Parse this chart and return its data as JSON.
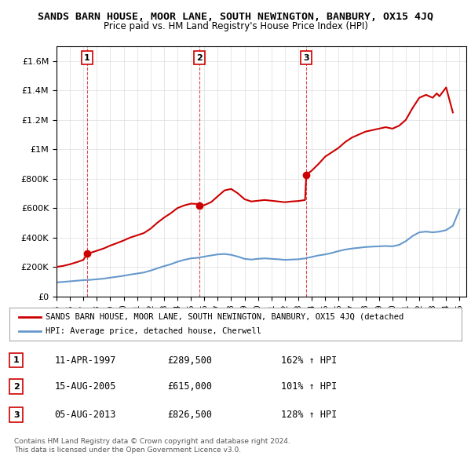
{
  "title": "SANDS BARN HOUSE, MOOR LANE, SOUTH NEWINGTON, BANBURY, OX15 4JQ",
  "subtitle": "Price paid vs. HM Land Registry's House Price Index (HPI)",
  "ylim": [
    0,
    1700000
  ],
  "yticks": [
    0,
    200000,
    400000,
    600000,
    800000,
    1000000,
    1200000,
    1400000,
    1600000
  ],
  "ytick_labels": [
    "£0",
    "£200K",
    "£400K",
    "£600K",
    "£800K",
    "£1M",
    "£1.2M",
    "£1.4M",
    "£1.6M"
  ],
  "sale_dates": [
    1997.28,
    2005.62,
    2013.59
  ],
  "sale_prices": [
    289500,
    615000,
    826500
  ],
  "sale_labels": [
    "1",
    "2",
    "3"
  ],
  "sale_label_info": [
    {
      "num": "1",
      "date": "11-APR-1997",
      "price": "£289,500",
      "hpi": "162% ↑ HPI"
    },
    {
      "num": "2",
      "date": "15-AUG-2005",
      "price": "£615,000",
      "hpi": "101% ↑ HPI"
    },
    {
      "num": "3",
      "date": "05-AUG-2013",
      "price": "£826,500",
      "hpi": "128% ↑ HPI"
    }
  ],
  "red_line_color": "#cc0000",
  "blue_line_color": "#6699cc",
  "dashed_vline_color": "#cc0000",
  "legend_label_red": "SANDS BARN HOUSE, MOOR LANE, SOUTH NEWINGTON, BANBURY, OX15 4JQ (detached",
  "legend_label_blue": "HPI: Average price, detached house, Cherwell",
  "footer1": "Contains HM Land Registry data © Crown copyright and database right 2024.",
  "footer2": "This data is licensed under the Open Government Licence v3.0.",
  "xmin": 1995,
  "xmax": 2025.5,
  "background_color": "#ffffff",
  "grid_color": "#dddddd"
}
